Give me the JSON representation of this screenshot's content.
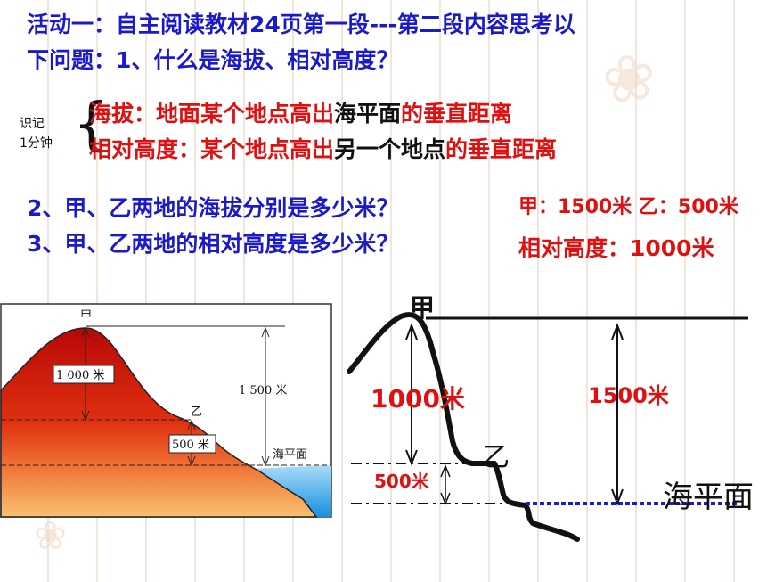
{
  "question1": {
    "line1": "活动一：自主阅读教材24页第一段---第二段内容思考以",
    "line2": "下问题：1、什么是海拔、相对高度？"
  },
  "memo_note": {
    "line1": "识记",
    "line2": "1分钟"
  },
  "definitions": {
    "altitude": {
      "term": "海拔：地面某个地点高出",
      "ref": "海平面",
      "tail": "的垂直距离"
    },
    "relative": {
      "term": "相对高度：某个地点高出",
      "ref": "另一个地点",
      "tail": "的垂直距离"
    }
  },
  "question2": {
    "text": "2、甲、乙两地的海拔分别是多少米？",
    "answer": "甲：1500米 乙：500米"
  },
  "question3": {
    "text": "3、甲、乙两地的相对高度是多少米？",
    "answer": "相对高度：1000米"
  },
  "left_diagram": {
    "peak_label": "甲",
    "point_label": "乙",
    "diff_label": "1 000 米",
    "b_altitude_label": "500 米",
    "a_altitude_label": "1 500 米",
    "sea_level_label": "海平面",
    "colors": {
      "mountain_top": "#c41010",
      "mountain_bottom": "#f5b060",
      "sea": "#2aa8e8"
    }
  },
  "right_diagram": {
    "peak_label": "甲",
    "point_label": "乙",
    "diff_label": "1000米",
    "b_altitude_label": "500米",
    "a_altitude_label": "1500米",
    "sea_level_label": "海平面",
    "colors": {
      "measure_label": "#e01010",
      "sea_line": "#1a1acc"
    }
  }
}
